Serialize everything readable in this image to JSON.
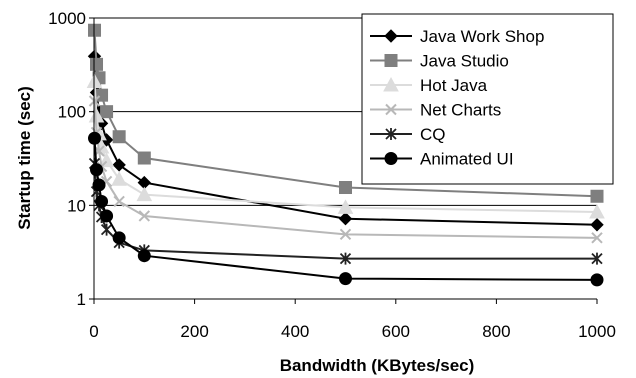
{
  "chart_data": {
    "type": "line",
    "title": "",
    "xlabel": "Bandwidth (KBytes/sec)",
    "ylabel": "Startup time (sec)",
    "xlim": [
      0,
      1000
    ],
    "ylim": [
      1,
      1000
    ],
    "yscale": "log",
    "xticks": [
      0,
      200,
      400,
      600,
      800,
      1000
    ],
    "yticks": [
      1,
      10,
      100,
      1000
    ],
    "x_tick_labels": [
      "0",
      "200",
      "400",
      "600",
      "800",
      "1000"
    ],
    "y_tick_labels": [
      "1",
      "10",
      "100",
      "1000"
    ],
    "grid": "horizontal",
    "legend_position": "top-right",
    "x": [
      1,
      5,
      10,
      15,
      25,
      50,
      100,
      500,
      1000
    ],
    "series": [
      {
        "name": "Java Work Shop",
        "marker": "diamond",
        "color": "#000000",
        "values": [
          390,
          160,
          100,
          75,
          50,
          27,
          17.5,
          7.2,
          6.2
        ]
      },
      {
        "name": "Java Studio",
        "marker": "square",
        "color": "#7f7f7f",
        "values": [
          740,
          320,
          230,
          150,
          100,
          54,
          32,
          15.5,
          12.5
        ]
      },
      {
        "name": "Hot Java",
        "marker": "triangle",
        "color": "#dcdcdc",
        "values": [
          210,
          90,
          58,
          42,
          30,
          19,
          13,
          9.5,
          8.5
        ]
      },
      {
        "name": "Net Charts",
        "marker": "x",
        "color": "#b8b8b8",
        "values": [
          130,
          60,
          38,
          26,
          18,
          11,
          7.7,
          4.9,
          4.5
        ]
      },
      {
        "name": "CQ",
        "marker": "star",
        "color": "#222222",
        "values": [
          28,
          14,
          10,
          7.5,
          5.5,
          4.0,
          3.3,
          2.7,
          2.7
        ]
      },
      {
        "name": "Animated UI",
        "marker": "circle",
        "color": "#000000",
        "values": [
          52,
          24,
          16.5,
          11,
          7.7,
          4.5,
          2.9,
          1.65,
          1.6
        ]
      }
    ]
  }
}
